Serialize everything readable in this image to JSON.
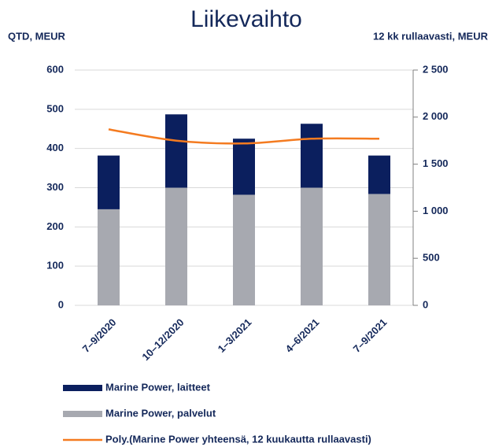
{
  "chart_data": {
    "type": "bar",
    "title": "Liikevaihto",
    "y_label": "QTD, MEUR",
    "y2_label": "12 kk rullaavasti, MEUR",
    "categories": [
      "7–9/2020",
      "10–12/2020",
      "1–3/2021",
      "4–6/2021",
      "7–9/2021"
    ],
    "stacked": true,
    "series": [
      {
        "name": "Marine Power, laitteet",
        "color": "#0b1f5e",
        "values": [
          137,
          187,
          143,
          163,
          98
        ]
      },
      {
        "name": "Marine Power, palvelut",
        "color": "#a7a9b0",
        "values": [
          245,
          300,
          282,
          300,
          284
        ]
      },
      {
        "name": "Poly.(Marine Power yhteensä, 12 kuukautta rullaavasti)",
        "color": "#f47b20",
        "type": "line",
        "axis": "y2",
        "values": [
          1870,
          1750,
          1720,
          1770,
          1770
        ]
      }
    ],
    "ylim": [
      0,
      600
    ],
    "yticks": [
      0,
      100,
      200,
      300,
      400,
      500,
      600
    ],
    "y2lim": [
      0,
      2500
    ],
    "y2ticks": [
      0,
      500,
      {
        "value": 1000,
        "label": "1 000"
      },
      {
        "value": 1500,
        "label": "1 500"
      },
      {
        "value": 2000,
        "label": "2 000"
      },
      {
        "value": 2500,
        "label": "2 500"
      }
    ],
    "grid": true,
    "legend": "bottom"
  }
}
